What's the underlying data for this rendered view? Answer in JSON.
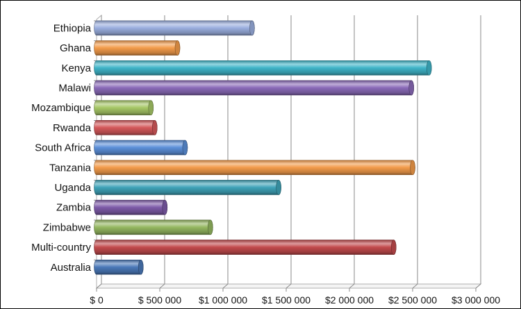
{
  "chart_data": {
    "type": "bar",
    "orientation": "horizontal",
    "style": "3d-cylinder",
    "categories": [
      "Ethiopia",
      "Ghana",
      "Kenya",
      "Malawi",
      "Mozambique",
      "Rwanda",
      "South Africa",
      "Tanzania",
      "Uganda",
      "Zambia",
      "Zimbabwe",
      "Multi-country",
      "Australia"
    ],
    "values": [
      1230000,
      640000,
      2630000,
      2490000,
      430000,
      460000,
      700000,
      2500000,
      1440000,
      540000,
      900000,
      2350000,
      350000
    ],
    "colors": [
      "#9aaede",
      "#f29b4a",
      "#3fb4c8",
      "#8a6ab8",
      "#a6c766",
      "#d4585a",
      "#5b8fd8",
      "#f29b4a",
      "#3fa3b8",
      "#7d5aa8",
      "#94b760",
      "#c24a4c",
      "#4a78b8"
    ],
    "xlim": [
      0,
      3000000
    ],
    "xticks": [
      "$ 0",
      "$ 500 000",
      "$1 000 000",
      "$1 500 000",
      "$2 000 000",
      "$2 500 000",
      "$3 000 000"
    ],
    "grid": true,
    "legend": "none",
    "title": "",
    "xlabel": "",
    "ylabel": ""
  }
}
